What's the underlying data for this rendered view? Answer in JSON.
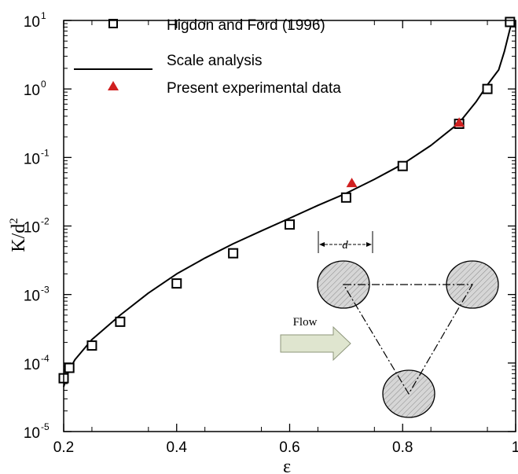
{
  "chart_data": {
    "type": "scatter",
    "xlabel": "ε",
    "ylabel_base": "K/d",
    "ylabel_sup": "2",
    "xlim": [
      0.2,
      1.0
    ],
    "ylim": [
      1e-05,
      10
    ],
    "yscale": "log",
    "x_ticks": [
      {
        "value": 0.2,
        "label": "0.2"
      },
      {
        "value": 0.4,
        "label": "0.4"
      },
      {
        "value": 0.6,
        "label": "0.6"
      },
      {
        "value": 0.8,
        "label": "0.8"
      },
      {
        "value": 1.0,
        "label": "1"
      }
    ],
    "y_ticks": [
      {
        "value": 1e-05,
        "base": "10",
        "exp": "-5"
      },
      {
        "value": 0.0001,
        "base": "10",
        "exp": "-4"
      },
      {
        "value": 0.001,
        "base": "10",
        "exp": "-3"
      },
      {
        "value": 0.01,
        "base": "10",
        "exp": "-2"
      },
      {
        "value": 0.1,
        "base": "10",
        "exp": "-1"
      },
      {
        "value": 1,
        "base": "10",
        "exp": "0"
      },
      {
        "value": 10,
        "base": "10",
        "exp": "1"
      }
    ],
    "legend_position": "top-left",
    "series": [
      {
        "name": "Higdon and Ford (1996)",
        "marker": "square",
        "color": "#000000",
        "points": [
          [
            0.2,
            6e-05
          ],
          [
            0.21,
            8.5e-05
          ],
          [
            0.25,
            0.00018
          ],
          [
            0.3,
            0.0004
          ],
          [
            0.4,
            0.00145
          ],
          [
            0.5,
            0.004
          ],
          [
            0.6,
            0.0105
          ],
          [
            0.7,
            0.026
          ],
          [
            0.8,
            0.075
          ],
          [
            0.9,
            0.31
          ],
          [
            0.95,
            1.0
          ],
          [
            0.99,
            9.5
          ]
        ]
      },
      {
        "name": "Scale analysis",
        "marker": "line",
        "color": "#000000",
        "points": [
          [
            0.2,
            4.5e-05
          ],
          [
            0.205,
            6.2e-05
          ],
          [
            0.21,
            8e-05
          ],
          [
            0.22,
            0.000112
          ],
          [
            0.25,
            0.00022
          ],
          [
            0.3,
            0.0005
          ],
          [
            0.35,
            0.00105
          ],
          [
            0.4,
            0.002
          ],
          [
            0.45,
            0.0034
          ],
          [
            0.5,
            0.0055
          ],
          [
            0.55,
            0.0085
          ],
          [
            0.6,
            0.013
          ],
          [
            0.65,
            0.02
          ],
          [
            0.7,
            0.03
          ],
          [
            0.75,
            0.048
          ],
          [
            0.8,
            0.08
          ],
          [
            0.85,
            0.15
          ],
          [
            0.9,
            0.32
          ],
          [
            0.93,
            0.65
          ],
          [
            0.95,
            1.15
          ],
          [
            0.97,
            1.9
          ],
          [
            0.98,
            3.5
          ],
          [
            0.99,
            7.5
          ],
          [
            0.995,
            10
          ]
        ]
      },
      {
        "name": "Present experimental data",
        "marker": "triangle",
        "color": "#d02020",
        "points": [
          [
            0.71,
            0.042
          ],
          [
            0.9,
            0.32
          ]
        ]
      }
    ],
    "inset": {
      "flow_label": "Flow",
      "spacing_label": "d",
      "fill_color": "#d4d4d4",
      "arrow_color": "#d8e0c8"
    }
  }
}
